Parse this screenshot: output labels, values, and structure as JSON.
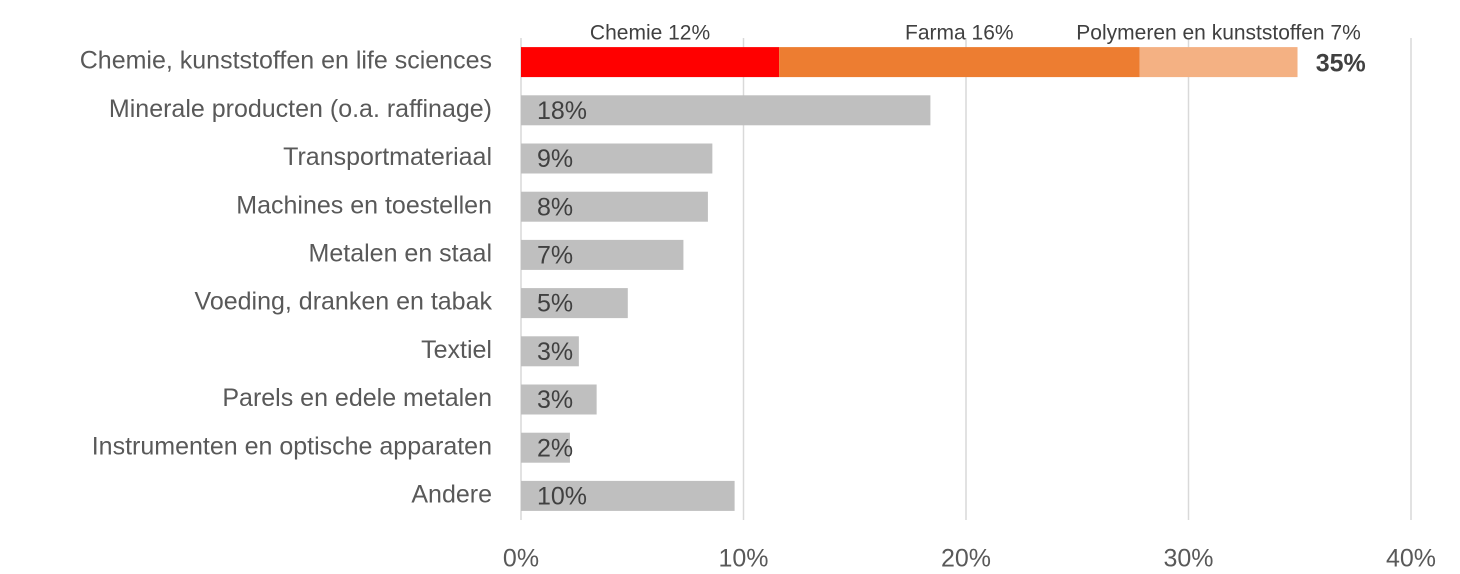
{
  "chart_data": {
    "type": "stacked-barh",
    "categories": [
      "Chemie, kunststoffen en life sciences",
      "Minerale producten (o.a. raffinage)",
      "Transportmateriaal",
      "Machines en toestellen",
      "Metalen en staal",
      "Voeding, dranken en tabak",
      "Textiel",
      "Parels en edele metalen",
      "Instrumenten en optische apparaten",
      "Andere"
    ],
    "series": [
      {
        "color": "#ff0000",
        "values": [
          11.6,
          null,
          null,
          null,
          null,
          null,
          null,
          null,
          null,
          null
        ],
        "value_labels": [
          "Chemie 12%",
          null,
          null,
          null,
          null,
          null,
          null,
          null,
          null,
          null
        ]
      },
      {
        "color": "#ed7d31",
        "values": [
          16.2,
          null,
          null,
          null,
          null,
          null,
          null,
          null,
          null,
          null
        ],
        "value_labels": [
          "Farma 16%",
          null,
          null,
          null,
          null,
          null,
          null,
          null,
          null,
          null
        ]
      },
      {
        "color": "#f4b183",
        "values": [
          7.1,
          null,
          null,
          null,
          null,
          null,
          null,
          null,
          null,
          null
        ],
        "value_labels": [
          "Polymeren en kunststoffen 7%",
          null,
          null,
          null,
          null,
          null,
          null,
          null,
          null,
          null
        ]
      },
      {
        "color": "#bfbfbf",
        "values": [
          null,
          18.4,
          8.6,
          8.4,
          7.3,
          4.8,
          2.6,
          3.4,
          2.2,
          9.6
        ],
        "value_labels": [
          null,
          "18%",
          "9%",
          "8%",
          "7%",
          "5%",
          "3%",
          "3%",
          "2%",
          "10%"
        ]
      }
    ],
    "total": {
      "value": 35,
      "label": "35%"
    },
    "xlim": [
      0,
      40
    ],
    "xticks": [
      {
        "value": 0,
        "label": "0%"
      },
      {
        "value": 10,
        "label": "10%"
      },
      {
        "value": 20,
        "label": "20%"
      },
      {
        "value": 30,
        "label": "30%"
      },
      {
        "value": 40,
        "label": "40%"
      }
    ],
    "grid": true
  }
}
